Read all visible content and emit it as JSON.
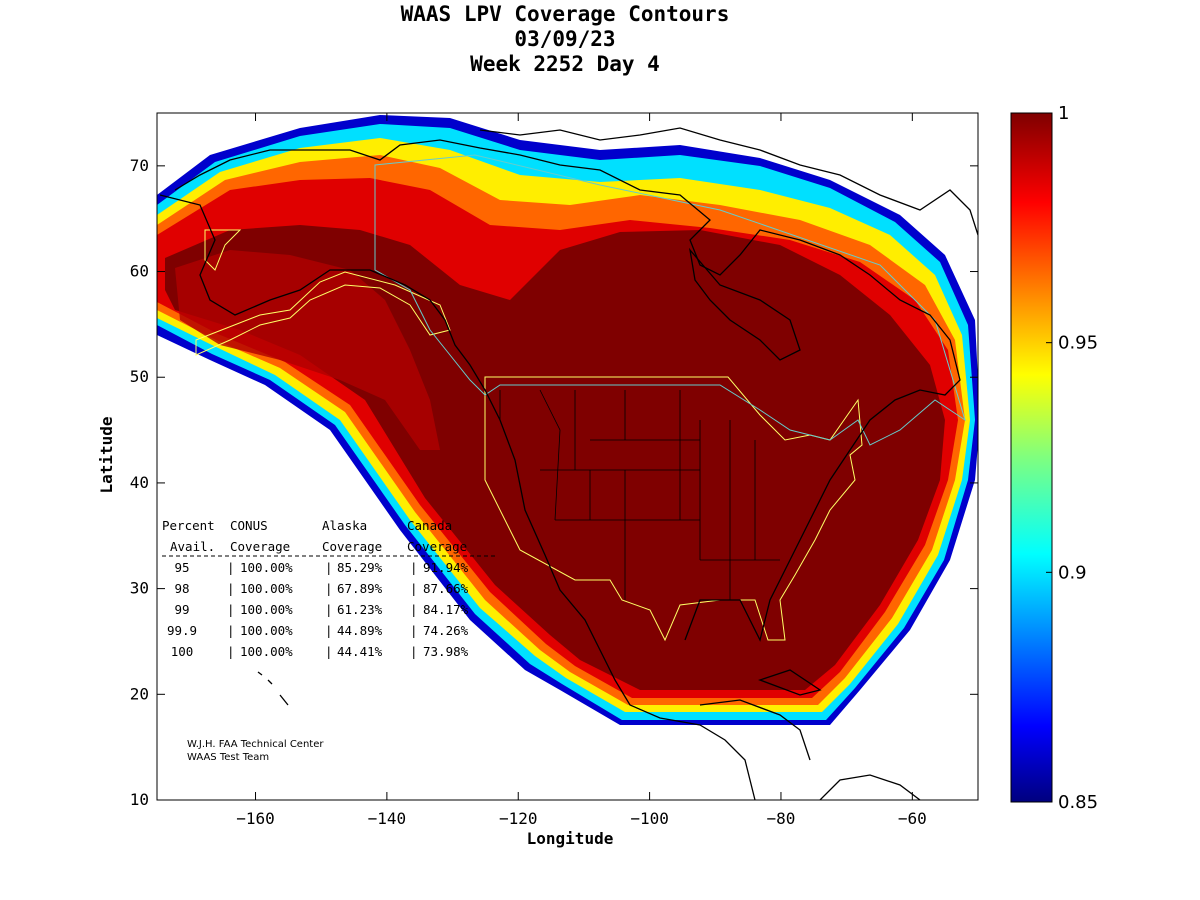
{
  "header": {
    "title_line1": "WAAS LPV Coverage Contours",
    "title_line2": "03/09/23",
    "title_line3": "Week 2252 Day 4"
  },
  "map": {
    "projection": "equirectangular",
    "lon_range": [
      -175,
      -50
    ],
    "lat_range": [
      10,
      75
    ],
    "xlabel": "Longitude",
    "ylabel": "Latitude",
    "x_ticks": [
      -160,
      -140,
      -120,
      -100,
      -80,
      -60
    ],
    "y_ticks": [
      10,
      20,
      30,
      40,
      50,
      60,
      70
    ],
    "x_tick_labels": [
      "−160",
      "−140",
      "−120",
      "−100",
      "−80",
      "−60"
    ],
    "y_tick_labels": [
      "10",
      "20",
      "30",
      "40",
      "50",
      "60",
      "70"
    ]
  },
  "colorbar": {
    "min": 0.85,
    "max": 1,
    "tick_values": [
      1,
      0.95,
      0.9,
      0.85
    ],
    "tick_labels": [
      "1",
      "0.95",
      "0.9",
      "0.85"
    ],
    "colormap": "jet"
  },
  "stats_table": {
    "header_row1": [
      "Percent",
      "CONUS",
      "Alaska",
      "Canada"
    ],
    "header_row2": [
      "Avail.",
      "Coverage",
      "Coverage",
      "Coverage"
    ],
    "rows": [
      {
        "percent": "95",
        "conus": "100.00%",
        "alaska": "85.29%",
        "canada": "91.94%"
      },
      {
        "percent": "98",
        "conus": "100.00%",
        "alaska": "67.89%",
        "canada": "87.66%"
      },
      {
        "percent": "99",
        "conus": "100.00%",
        "alaska": "61.23%",
        "canada": "84.17%"
      },
      {
        "percent": "99.9",
        "conus": "100.00%",
        "alaska": "44.89%",
        "canada": "74.26%"
      },
      {
        "percent": "100",
        "conus": "100.00%",
        "alaska": "44.41%",
        "canada": "73.98%"
      }
    ]
  },
  "credit": {
    "line1": "W.J.H. FAA Technical Center",
    "line2": "WAAS Test Team"
  },
  "colors": {
    "max_coverage": "#7f0000",
    "region_boundary": "#ffff66",
    "canada_boundary": "#66cccc"
  }
}
